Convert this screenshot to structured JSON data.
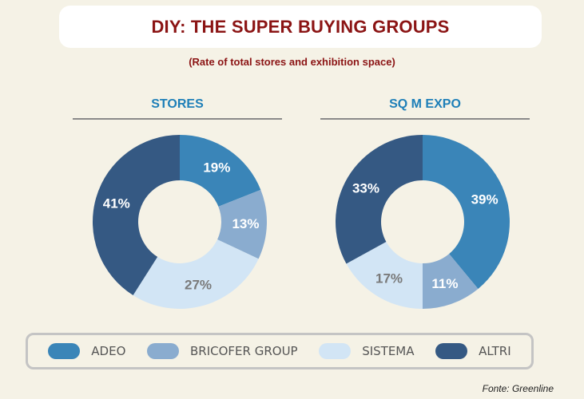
{
  "header": {
    "title": "DIY: THE SUPER BUYING GROUPS",
    "subtitle": "(Rate of total stores and exhibition space)"
  },
  "colors": {
    "ADEO": "#3a85b8",
    "BRICOFER GROUP": "#8aaccf",
    "SISTEMA": "#d2e5f5",
    "ALTRI": "#355983"
  },
  "chart_data": [
    {
      "type": "pie",
      "title": "STORES",
      "categories": [
        "ADEO",
        "BRICOFER GROUP",
        "SISTEMA",
        "ALTRI"
      ],
      "values": [
        19,
        13,
        27,
        41
      ],
      "labels": [
        "19%",
        "13%",
        "27%",
        "41%"
      ]
    },
    {
      "type": "pie",
      "title": "SQ M EXPO",
      "categories": [
        "ADEO",
        "BRICOFER GROUP",
        "SISTEMA",
        "ALTRI"
      ],
      "values": [
        39,
        11,
        17,
        33
      ],
      "labels": [
        "39%",
        "11%",
        "17%",
        "33%"
      ]
    }
  ],
  "legend": [
    {
      "label": "ADEO",
      "color": "#3a85b8"
    },
    {
      "label": "BRICOFER GROUP",
      "color": "#8aaccf"
    },
    {
      "label": "SISTEMA",
      "color": "#d2e5f5"
    },
    {
      "label": "ALTRI",
      "color": "#355983"
    }
  ],
  "source": "Fonte: Greenline"
}
